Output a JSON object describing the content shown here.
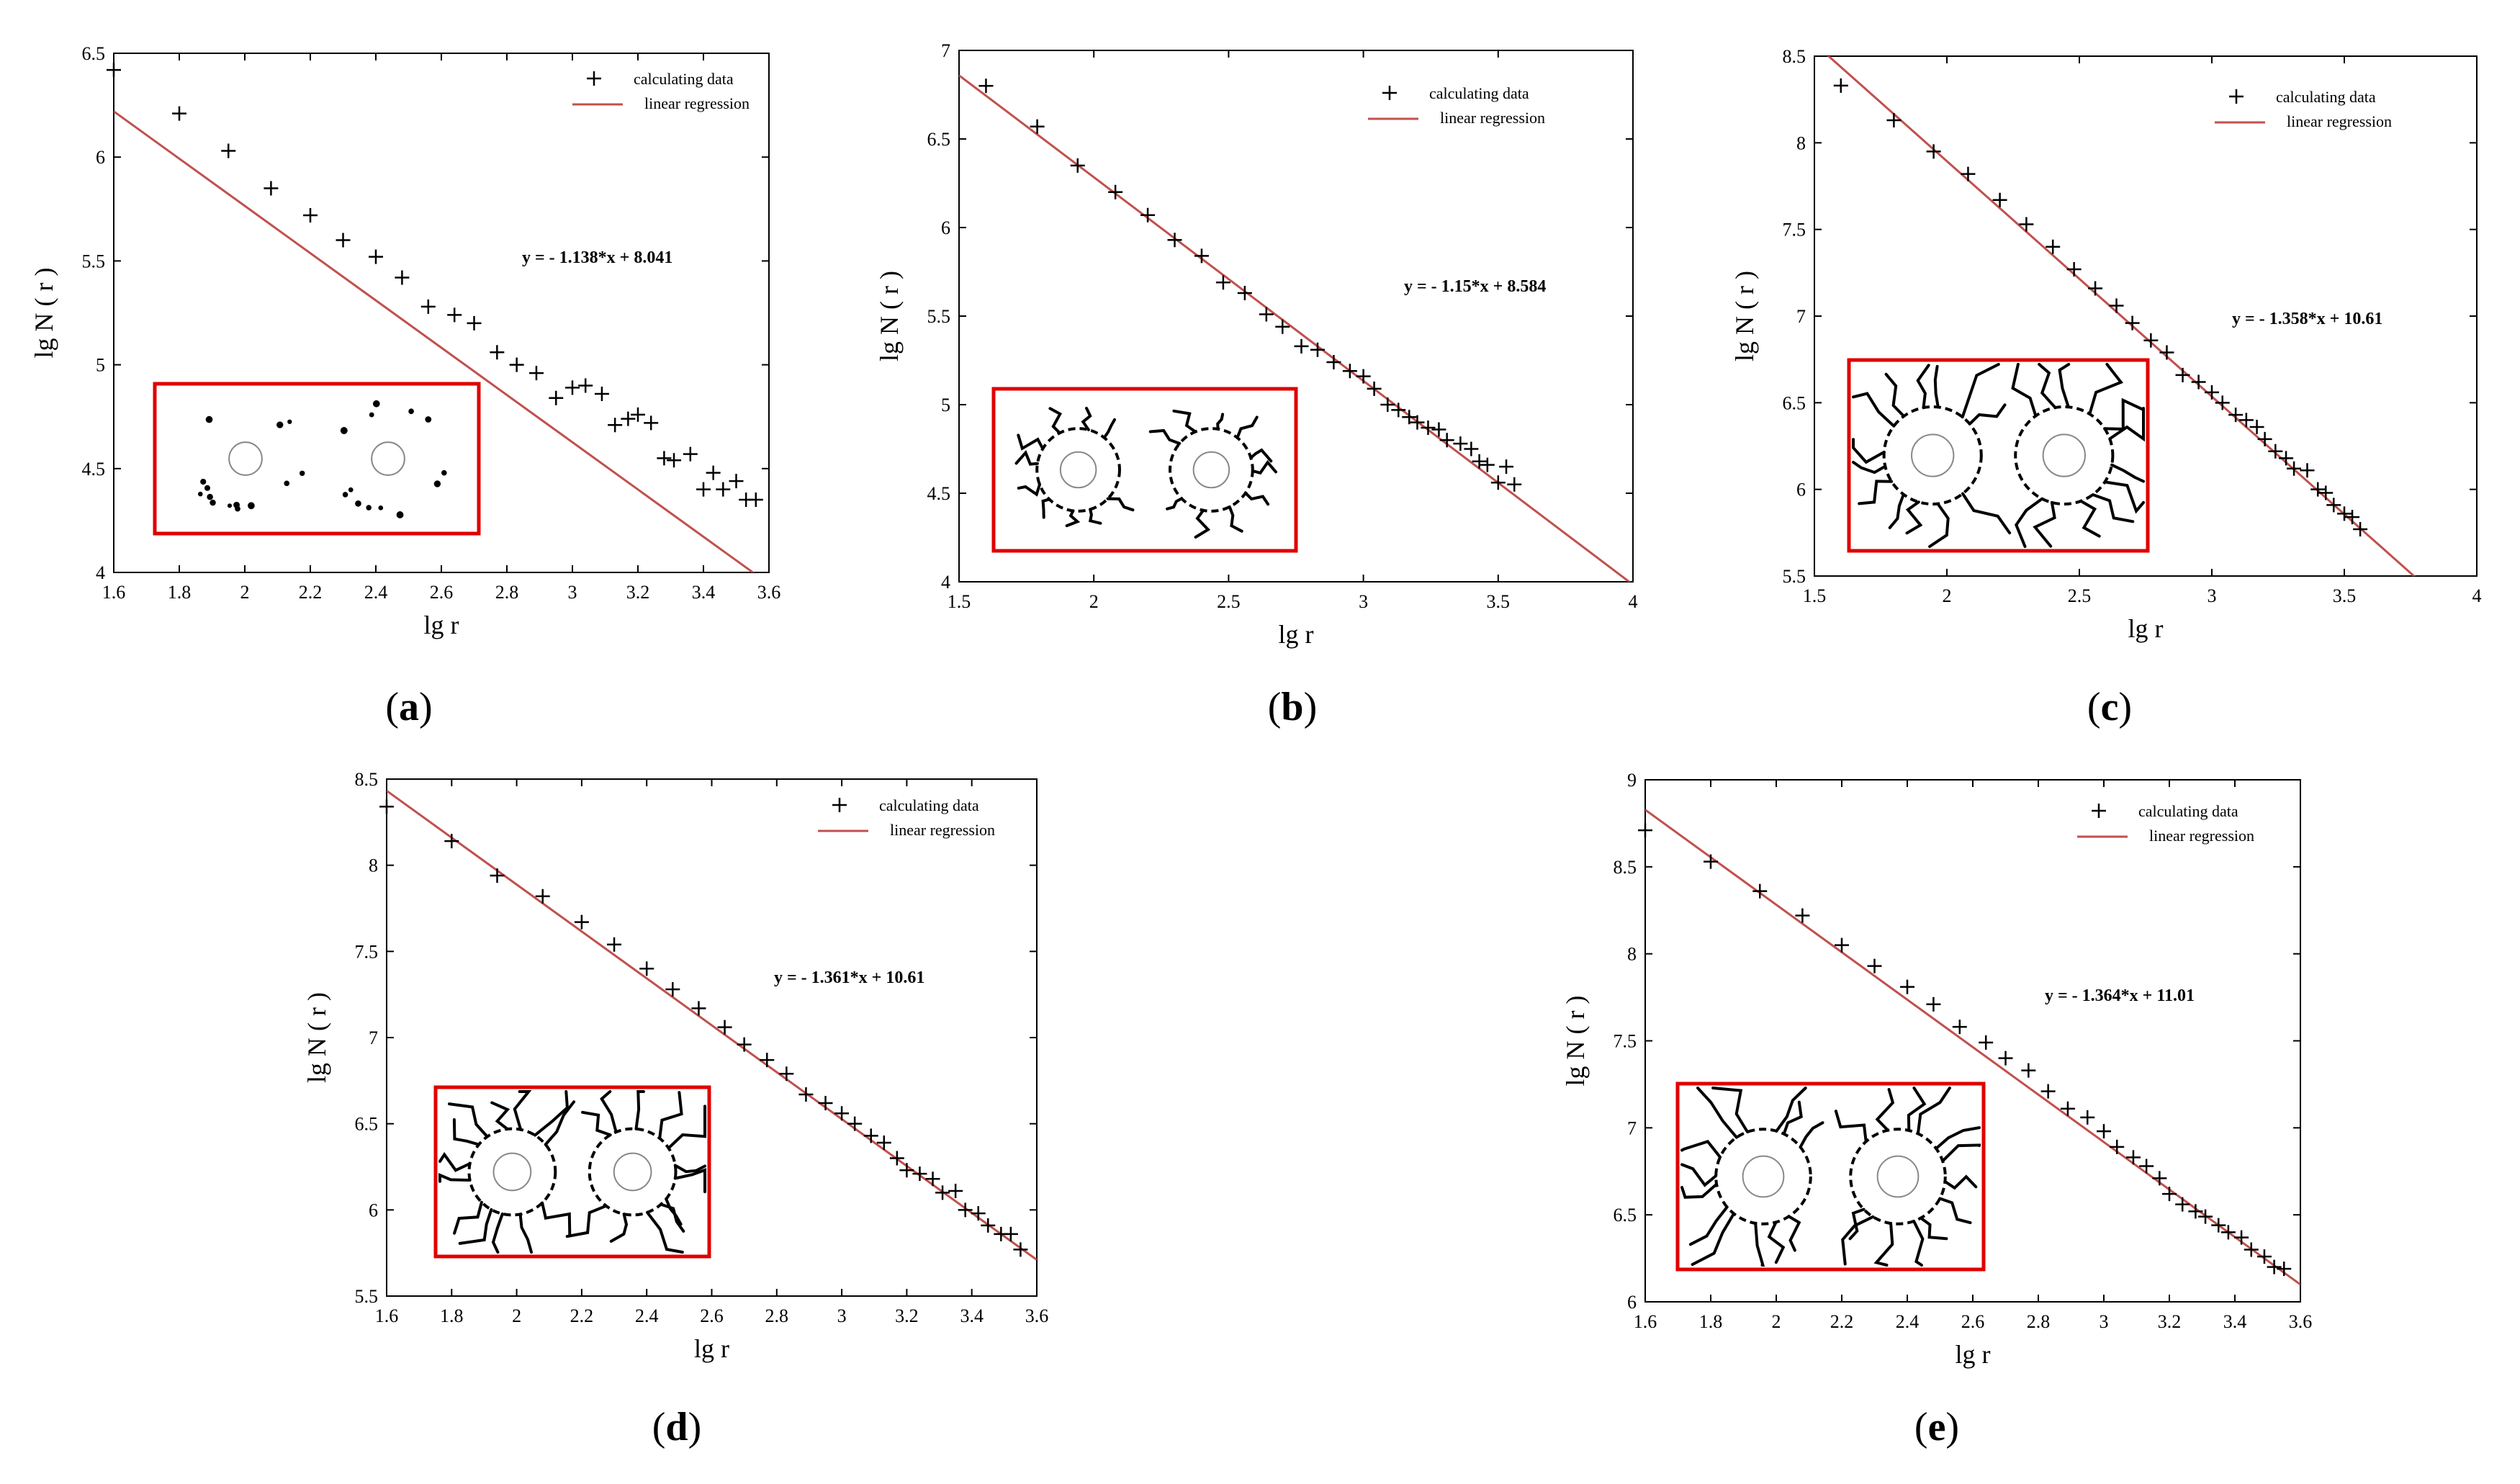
{
  "legend": {
    "data_label": "calculating data",
    "fit_label": "linear regression"
  },
  "colors": {
    "fit_line": "#c0504d",
    "inset_border": "#e00000",
    "points": "#000000",
    "axes": "#000000"
  },
  "chart_data": [
    {
      "type": "scatter",
      "panel": "(a)",
      "caption_letter": "a",
      "xlabel": "lg r",
      "ylabel": "lg N ( r )",
      "xlim": [
        1.6,
        3.6
      ],
      "ylim": [
        4,
        6.5
      ],
      "xticks": [
        "1.6",
        "1.8",
        "2",
        "2.2",
        "2.4",
        "2.6",
        "2.8",
        "3",
        "3.2",
        "3.4",
        "3.6"
      ],
      "yticks": [
        "4",
        "4.5",
        "5",
        "5.5",
        "6",
        "6.5"
      ],
      "equation": "y = - 1.138*x + 8.041",
      "fit": {
        "slope": -1.138,
        "intercept": 8.041
      },
      "legend_position": "top-right",
      "series": [
        {
          "name": "calculating data",
          "points": [
            [
              1.6,
              6.42
            ],
            [
              1.8,
              6.21
            ],
            [
              1.95,
              6.03
            ],
            [
              2.08,
              5.85
            ],
            [
              2.2,
              5.72
            ],
            [
              2.3,
              5.6
            ],
            [
              2.4,
              5.52
            ],
            [
              2.48,
              5.42
            ],
            [
              2.56,
              5.28
            ],
            [
              2.64,
              5.24
            ],
            [
              2.7,
              5.2
            ],
            [
              2.77,
              5.06
            ],
            [
              2.83,
              5.0
            ],
            [
              2.89,
              4.96
            ],
            [
              2.95,
              4.84
            ],
            [
              3.0,
              4.89
            ],
            [
              3.04,
              4.9
            ],
            [
              3.09,
              4.86
            ],
            [
              3.13,
              4.71
            ],
            [
              3.17,
              4.74
            ],
            [
              3.2,
              4.76
            ],
            [
              3.24,
              4.72
            ],
            [
              3.28,
              4.55
            ],
            [
              3.31,
              4.54
            ],
            [
              3.36,
              4.57
            ],
            [
              3.4,
              4.4
            ],
            [
              3.43,
              4.48
            ],
            [
              3.46,
              4.4
            ],
            [
              3.5,
              4.44
            ],
            [
              3.53,
              4.35
            ],
            [
              3.56,
              4.35
            ]
          ]
        },
        {
          "name": "linear regression",
          "kind": "line"
        }
      ]
    },
    {
      "type": "scatter",
      "panel": "(b)",
      "caption_letter": "b",
      "xlabel": "lg r",
      "ylabel": "lg N ( r )",
      "xlim": [
        1.5,
        4
      ],
      "ylim": [
        4,
        7
      ],
      "xticks": [
        "1.5",
        "2",
        "2.5",
        "3",
        "3.5",
        "4"
      ],
      "yticks": [
        "4",
        "4.5",
        "5",
        "5.5",
        "6",
        "6.5",
        "7"
      ],
      "equation": "y = - 1.15*x + 8.584",
      "fit": {
        "slope": -1.15,
        "intercept": 8.584
      },
      "legend_position": "top-right",
      "series": [
        {
          "name": "calculating data",
          "points": [
            [
              1.6,
              6.8
            ],
            [
              1.79,
              6.57
            ],
            [
              1.94,
              6.35
            ],
            [
              2.08,
              6.2
            ],
            [
              2.2,
              6.07
            ],
            [
              2.3,
              5.93
            ],
            [
              2.4,
              5.84
            ],
            [
              2.48,
              5.69
            ],
            [
              2.56,
              5.63
            ],
            [
              2.64,
              5.51
            ],
            [
              2.7,
              5.44
            ],
            [
              2.77,
              5.33
            ],
            [
              2.83,
              5.31
            ],
            [
              2.89,
              5.24
            ],
            [
              2.95,
              5.19
            ],
            [
              3.0,
              5.16
            ],
            [
              3.04,
              5.09
            ],
            [
              3.09,
              5.0
            ],
            [
              3.13,
              4.97
            ],
            [
              3.17,
              4.93
            ],
            [
              3.2,
              4.9
            ],
            [
              3.24,
              4.87
            ],
            [
              3.28,
              4.86
            ],
            [
              3.31,
              4.8
            ],
            [
              3.36,
              4.78
            ],
            [
              3.4,
              4.75
            ],
            [
              3.43,
              4.68
            ],
            [
              3.46,
              4.66
            ],
            [
              3.5,
              4.56
            ],
            [
              3.53,
              4.65
            ],
            [
              3.56,
              4.55
            ]
          ]
        },
        {
          "name": "linear regression",
          "kind": "line"
        }
      ]
    },
    {
      "type": "scatter",
      "panel": "(c)",
      "caption_letter": "c",
      "xlabel": "lg r",
      "ylabel": "lg N ( r )",
      "xlim": [
        1.5,
        4
      ],
      "ylim": [
        5.5,
        8.5
      ],
      "xticks": [
        "1.5",
        "2",
        "2.5",
        "3",
        "3.5",
        "4"
      ],
      "yticks": [
        "5.5",
        "6",
        "6.5",
        "7",
        "7.5",
        "8",
        "8.5"
      ],
      "equation": "y = - 1.358*x + 10.61",
      "fit": {
        "slope": -1.358,
        "intercept": 10.61
      },
      "legend_position": "top-right",
      "series": [
        {
          "name": "calculating data",
          "points": [
            [
              1.6,
              8.33
            ],
            [
              1.8,
              8.13
            ],
            [
              1.95,
              7.95
            ],
            [
              2.08,
              7.82
            ],
            [
              2.2,
              7.67
            ],
            [
              2.3,
              7.53
            ],
            [
              2.4,
              7.4
            ],
            [
              2.48,
              7.27
            ],
            [
              2.56,
              7.16
            ],
            [
              2.64,
              7.06
            ],
            [
              2.7,
              6.96
            ],
            [
              2.77,
              6.86
            ],
            [
              2.83,
              6.79
            ],
            [
              2.89,
              6.66
            ],
            [
              2.95,
              6.62
            ],
            [
              3.0,
              6.56
            ],
            [
              3.04,
              6.5
            ],
            [
              3.09,
              6.43
            ],
            [
              3.13,
              6.4
            ],
            [
              3.17,
              6.36
            ],
            [
              3.2,
              6.29
            ],
            [
              3.24,
              6.22
            ],
            [
              3.28,
              6.18
            ],
            [
              3.31,
              6.12
            ],
            [
              3.36,
              6.11
            ],
            [
              3.4,
              6.0
            ],
            [
              3.43,
              5.98
            ],
            [
              3.46,
              5.91
            ],
            [
              3.5,
              5.86
            ],
            [
              3.53,
              5.84
            ],
            [
              3.56,
              5.77
            ]
          ]
        },
        {
          "name": "linear regression",
          "kind": "line"
        }
      ]
    },
    {
      "type": "scatter",
      "panel": "(d)",
      "caption_letter": "d",
      "xlabel": "lg r",
      "ylabel": "lg N ( r )",
      "xlim": [
        1.6,
        3.6
      ],
      "ylim": [
        5.5,
        8.5
      ],
      "xticks": [
        "1.6",
        "1.8",
        "2",
        "2.2",
        "2.4",
        "2.6",
        "2.8",
        "3",
        "3.2",
        "3.4",
        "3.6"
      ],
      "yticks": [
        "5.5",
        "6",
        "6.5",
        "7",
        "7.5",
        "8",
        "8.5"
      ],
      "equation": "y = - 1.361*x + 10.61",
      "fit": {
        "slope": -1.361,
        "intercept": 10.61
      },
      "legend_position": "top-right",
      "series": [
        {
          "name": "calculating data",
          "points": [
            [
              1.6,
              8.34
            ],
            [
              1.8,
              8.14
            ],
            [
              1.94,
              7.94
            ],
            [
              2.08,
              7.82
            ],
            [
              2.2,
              7.67
            ],
            [
              2.3,
              7.54
            ],
            [
              2.4,
              7.4
            ],
            [
              2.48,
              7.28
            ],
            [
              2.56,
              7.17
            ],
            [
              2.64,
              7.06
            ],
            [
              2.7,
              6.96
            ],
            [
              2.77,
              6.87
            ],
            [
              2.83,
              6.79
            ],
            [
              2.89,
              6.67
            ],
            [
              2.95,
              6.62
            ],
            [
              3.0,
              6.56
            ],
            [
              3.04,
              6.5
            ],
            [
              3.09,
              6.43
            ],
            [
              3.13,
              6.39
            ],
            [
              3.17,
              6.3
            ],
            [
              3.2,
              6.23
            ],
            [
              3.24,
              6.21
            ],
            [
              3.28,
              6.18
            ],
            [
              3.31,
              6.1
            ],
            [
              3.35,
              6.11
            ],
            [
              3.38,
              6.0
            ],
            [
              3.42,
              5.98
            ],
            [
              3.45,
              5.91
            ],
            [
              3.49,
              5.86
            ],
            [
              3.52,
              5.86
            ],
            [
              3.55,
              5.77
            ]
          ]
        },
        {
          "name": "linear regression",
          "kind": "line"
        }
      ]
    },
    {
      "type": "scatter",
      "panel": "(e)",
      "caption_letter": "e",
      "xlabel": "lg r",
      "ylabel": "lg N ( r )",
      "xlim": [
        1.6,
        3.6
      ],
      "ylim": [
        6,
        9
      ],
      "xticks": [
        "1.6",
        "1.8",
        "2",
        "2.2",
        "2.4",
        "2.6",
        "2.8",
        "3",
        "3.2",
        "3.4",
        "3.6"
      ],
      "yticks": [
        "6",
        "6.5",
        "7",
        "7.5",
        "8",
        "8.5",
        "9"
      ],
      "equation": "y = - 1.364*x + 11.01",
      "fit": {
        "slope": -1.364,
        "intercept": 11.01
      },
      "legend_position": "top-right",
      "series": [
        {
          "name": "calculating data",
          "points": [
            [
              1.6,
              8.71
            ],
            [
              1.8,
              8.53
            ],
            [
              1.95,
              8.36
            ],
            [
              2.08,
              8.22
            ],
            [
              2.2,
              8.05
            ],
            [
              2.3,
              7.93
            ],
            [
              2.4,
              7.81
            ],
            [
              2.48,
              7.71
            ],
            [
              2.56,
              7.58
            ],
            [
              2.64,
              7.49
            ],
            [
              2.7,
              7.4
            ],
            [
              2.77,
              7.33
            ],
            [
              2.83,
              7.21
            ],
            [
              2.89,
              7.11
            ],
            [
              2.95,
              7.06
            ],
            [
              3.0,
              6.98
            ],
            [
              3.04,
              6.89
            ],
            [
              3.09,
              6.83
            ],
            [
              3.13,
              6.78
            ],
            [
              3.17,
              6.71
            ],
            [
              3.2,
              6.62
            ],
            [
              3.24,
              6.56
            ],
            [
              3.28,
              6.52
            ],
            [
              3.31,
              6.49
            ],
            [
              3.35,
              6.44
            ],
            [
              3.38,
              6.4
            ],
            [
              3.42,
              6.37
            ],
            [
              3.45,
              6.3
            ],
            [
              3.49,
              6.26
            ],
            [
              3.52,
              6.2
            ],
            [
              3.55,
              6.19
            ]
          ]
        },
        {
          "name": "linear regression",
          "kind": "line"
        }
      ]
    }
  ]
}
